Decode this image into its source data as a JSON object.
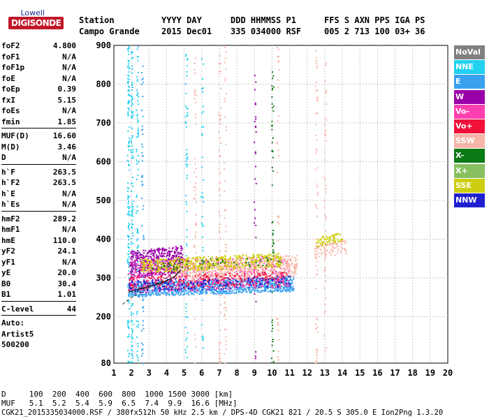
{
  "logo": {
    "brand_top": "Lowell",
    "brand_main": "DIGISONDE"
  },
  "header": {
    "col1_h": "Station",
    "col1_v": "Campo Grande",
    "col2_h": "YYYY DAY",
    "col2_v": "2015 Dec01",
    "col3_h": "DDD HHMMSS P1",
    "col3_v": "335 034000 RSF",
    "col4_h": "FFS S AXN PPS IGA PS",
    "col4_v": "005 2 713 100 03+ 36"
  },
  "params": [
    [
      "foF2",
      "4.800"
    ],
    [
      "foF1",
      "N/A"
    ],
    [
      "foF1p",
      "N/A"
    ],
    [
      "foE",
      "N/A"
    ],
    [
      "foEp",
      "0.39"
    ],
    [
      "fxI",
      "5.15"
    ],
    [
      "foEs",
      "N/A"
    ],
    [
      "fmin",
      "1.85"
    ],
    "div",
    [
      "MUF(D)",
      "16.60"
    ],
    [
      "M(D)",
      "3.46"
    ],
    [
      "D",
      "N/A"
    ],
    "div",
    [
      "h`F",
      "263.5"
    ],
    [
      "h`F2",
      "263.5"
    ],
    [
      "h`E",
      "N/A"
    ],
    [
      "h`Es",
      "N/A"
    ],
    "div",
    [
      "hmF2",
      "289.2"
    ],
    [
      "hmF1",
      "N/A"
    ],
    [
      "hmE",
      "110.0"
    ],
    [
      "yF2",
      "24.1"
    ],
    [
      "yF1",
      "N/A"
    ],
    [
      "yE",
      "20.0"
    ],
    [
      "B0",
      "30.4"
    ],
    [
      "B1",
      "1.01"
    ],
    "div",
    [
      "C-level",
      "44"
    ],
    "div",
    [
      "Auto:",
      ""
    ],
    [
      "Artist5",
      ""
    ],
    [
      "500200",
      ""
    ]
  ],
  "legend": [
    {
      "label": "NoVal",
      "color": "#808080"
    },
    {
      "label": "NNE",
      "color": "#22d0f0"
    },
    {
      "label": "E",
      "color": "#3aa0f0"
    },
    {
      "label": "W",
      "color": "#9a00a8"
    },
    {
      "label": "Vo-",
      "color": "#ff3fb0"
    },
    {
      "label": "Vo+",
      "color": "#f0103a"
    },
    {
      "label": "SSW",
      "color": "#f7b4a8"
    },
    {
      "label": "X-",
      "color": "#0a7a14"
    },
    {
      "label": "X+",
      "color": "#88c060"
    },
    {
      "label": "SSE",
      "color": "#cece10"
    },
    {
      "label": "NNW",
      "color": "#2020d0"
    }
  ],
  "chart_data": {
    "type": "scatter",
    "xlabel": "",
    "ylabel": "",
    "xlim": [
      1,
      20
    ],
    "ylim": [
      80,
      900
    ],
    "x_ticks": [
      "1",
      "2",
      "3",
      "4",
      "5",
      "6",
      "7",
      "8",
      "9",
      "10",
      "11",
      "12",
      "13",
      "14",
      "15",
      "16",
      "17",
      "18",
      "19",
      "20"
    ],
    "y_ticks": [
      "80",
      "200",
      "300",
      "400",
      "500",
      "600",
      "700",
      "800",
      "900"
    ],
    "grid": true,
    "trace_profile": {
      "name": "fitted trace",
      "color": "#202020",
      "x": [
        1.85,
        2.2,
        2.8,
        3.4,
        4.0,
        4.5,
        4.8
      ],
      "y": [
        263.5,
        268,
        275,
        283,
        292,
        305,
        320
      ]
    },
    "dashed_profile": {
      "color": "#303030",
      "x": [
        1.5,
        2.0,
        3.0,
        4.0,
        4.8
      ],
      "y": [
        232,
        250,
        275,
        300,
        330
      ]
    },
    "layer_bands": [
      {
        "series": "E",
        "x": [
          1.8,
          11.2
        ],
        "y": [
          252,
          305
        ],
        "n": 1200
      },
      {
        "series": "W",
        "x": [
          1.9,
          4.9
        ],
        "y": [
          300,
          385
        ],
        "n": 500
      },
      {
        "series": "Vo-",
        "x": [
          1.8,
          11.0
        ],
        "y": [
          262,
          360
        ],
        "n": 700
      },
      {
        "series": "SSW",
        "x": [
          4.5,
          11.4
        ],
        "y": [
          290,
          360
        ],
        "n": 700
      },
      {
        "series": "SSE",
        "x": [
          2.5,
          10.5
        ],
        "y": [
          315,
          365
        ],
        "n": 500
      },
      {
        "series": "Vo+",
        "x": [
          1.8,
          10.8
        ],
        "y": [
          270,
          320
        ],
        "n": 250
      },
      {
        "series": "NNW",
        "x": [
          1.8,
          11.0
        ],
        "y": [
          262,
          310
        ],
        "n": 200
      },
      {
        "series": "X-",
        "x": [
          3.0,
          10.5
        ],
        "y": [
          320,
          360
        ],
        "n": 60
      },
      {
        "series": "SSE",
        "x": [
          12.5,
          14.0
        ],
        "y": [
          380,
          420
        ],
        "n": 80
      },
      {
        "series": "SSW",
        "x": [
          12.4,
          14.2
        ],
        "y": [
          350,
          400
        ],
        "n": 80
      }
    ],
    "vertical_bands": [
      {
        "series": "NNE",
        "x": 1.8,
        "y": [
          80,
          900
        ],
        "n": 150
      },
      {
        "series": "NNE",
        "x": 2.0,
        "y": [
          80,
          900
        ],
        "n": 120
      },
      {
        "series": "NNE",
        "x": 2.3,
        "y": [
          80,
          900
        ],
        "n": 90
      },
      {
        "series": "E",
        "x": 2.6,
        "y": [
          80,
          900
        ],
        "n": 60
      },
      {
        "series": "NNE",
        "x": 5.1,
        "y": [
          80,
          900
        ],
        "n": 60
      },
      {
        "series": "SSW",
        "x": 5.6,
        "y": [
          80,
          900
        ],
        "n": 50
      },
      {
        "series": "NNE",
        "x": 6.0,
        "y": [
          80,
          900
        ],
        "n": 45
      },
      {
        "series": "SSW",
        "x": 7.0,
        "y": [
          80,
          900
        ],
        "n": 60
      },
      {
        "series": "SSW",
        "x": 7.3,
        "y": [
          80,
          900
        ],
        "n": 50
      },
      {
        "series": "W",
        "x": 9.0,
        "y": [
          80,
          900
        ],
        "n": 35
      },
      {
        "series": "X-",
        "x": 10.0,
        "y": [
          80,
          900
        ],
        "n": 60
      },
      {
        "series": "SSW",
        "x": 10.3,
        "y": [
          80,
          900
        ],
        "n": 35
      },
      {
        "series": "SSW",
        "x": 12.5,
        "y": [
          80,
          900
        ],
        "n": 60
      },
      {
        "series": "SSW",
        "x": 13.0,
        "y": [
          80,
          900
        ],
        "n": 45
      }
    ]
  },
  "footer": {
    "d_label": "D",
    "d_values": "100  200  400  600  800  1000 1500 3000 [km]",
    "muf_label": "MUF",
    "muf_values": "5.1  5.2  5.4  5.9  6.5  7.4  9.9  16.6 [MHz]",
    "file_line": "CGK21_2015335034000.RSF / 380fx512h 50 kHz 2.5 km / DPS-4D CGK21 821 / 20.5 S 305.0 E Ion2Png 1.3.20"
  }
}
